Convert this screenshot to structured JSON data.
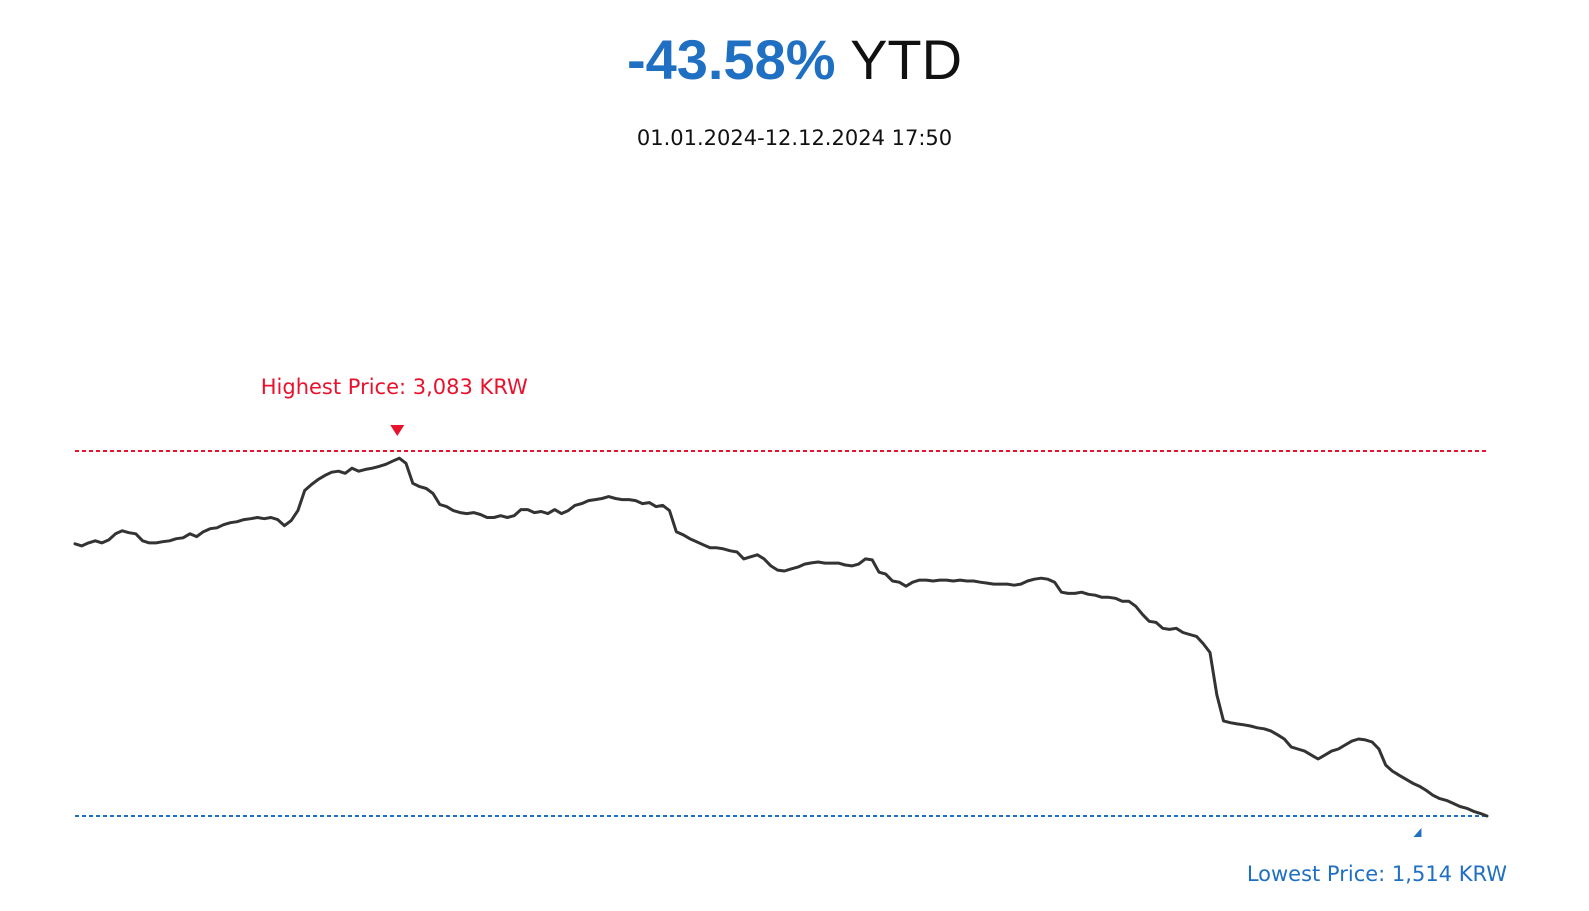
{
  "header": {
    "change_pct": "-43.58%",
    "period_label": "YTD",
    "date_range": "01.01.2024-12.12.2024 17:50"
  },
  "colors": {
    "change": "#1f6fc2",
    "line": "#333333",
    "high": "#e8122d",
    "low": "#1f6fc2"
  },
  "chart_data": {
    "type": "line",
    "title": "-43.58% YTD",
    "subtitle": "01.01.2024-12.12.2024 17:50",
    "xlabel": "",
    "ylabel": "",
    "grid": false,
    "ylim": [
      1514,
      3083
    ],
    "annotations": {
      "high": {
        "label": "Highest Price: 3,083 KRW",
        "value": 3083,
        "index": 48
      },
      "low": {
        "label": "Lowest Price: 1,514 KRW",
        "value": 1514,
        "index": 199
      }
    },
    "series": [
      {
        "values": [
          2684,
          2675,
          2688,
          2697,
          2688,
          2701,
          2727,
          2740,
          2732,
          2727,
          2697,
          2688,
          2688,
          2693,
          2697,
          2706,
          2710,
          2727,
          2715,
          2736,
          2749,
          2753,
          2766,
          2775,
          2779,
          2788,
          2792,
          2797,
          2792,
          2797,
          2788,
          2762,
          2784,
          2827,
          2913,
          2939,
          2961,
          2978,
          2992,
          2996,
          2987,
          3009,
          2996,
          3004,
          3009,
          3017,
          3026,
          3039,
          3052,
          3030,
          2944,
          2930,
          2922,
          2900,
          2853,
          2844,
          2827,
          2818,
          2814,
          2818,
          2810,
          2797,
          2797,
          2805,
          2797,
          2805,
          2831,
          2831,
          2818,
          2823,
          2814,
          2831,
          2814,
          2827,
          2849,
          2857,
          2870,
          2874,
          2879,
          2887,
          2879,
          2874,
          2874,
          2870,
          2857,
          2861,
          2844,
          2849,
          2827,
          2736,
          2723,
          2706,
          2693,
          2680,
          2667,
          2667,
          2662,
          2654,
          2649,
          2619,
          2628,
          2637,
          2619,
          2589,
          2571,
          2567,
          2576,
          2584,
          2597,
          2602,
          2606,
          2601,
          2601,
          2601,
          2593,
          2589,
          2597,
          2619,
          2615,
          2562,
          2554,
          2524,
          2519,
          2502,
          2519,
          2528,
          2528,
          2524,
          2528,
          2528,
          2524,
          2528,
          2524,
          2524,
          2519,
          2515,
          2511,
          2511,
          2511,
          2506,
          2511,
          2524,
          2532,
          2536,
          2532,
          2519,
          2476,
          2471,
          2471,
          2476,
          2467,
          2463,
          2454,
          2454,
          2450,
          2437,
          2437,
          2416,
          2381,
          2351,
          2346,
          2321,
          2316,
          2321,
          2303,
          2294,
          2286,
          2255,
          2217,
          2036,
          1923,
          1915,
          1910,
          1906,
          1901,
          1893,
          1889,
          1880,
          1863,
          1845,
          1811,
          1802,
          1793,
          1776,
          1759,
          1776,
          1793,
          1802,
          1819,
          1836,
          1845,
          1841,
          1832,
          1802,
          1733,
          1707,
          1689,
          1672,
          1655,
          1642,
          1624,
          1603,
          1589,
          1581,
          1568,
          1555,
          1547,
          1534,
          1525,
          1514
        ]
      }
    ]
  }
}
